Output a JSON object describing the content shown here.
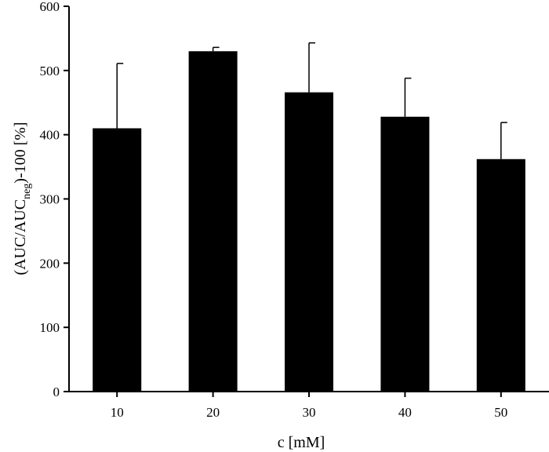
{
  "chart_data": {
    "type": "bar",
    "categories": [
      "10",
      "20",
      "30",
      "40",
      "50"
    ],
    "series": [
      {
        "values": [
          410,
          530,
          466,
          428,
          362
        ],
        "errors": [
          101,
          6,
          77,
          60,
          57
        ]
      }
    ],
    "xlabel": "c [mM]",
    "ylabel": {
      "prefix": "(AUC/AUC",
      "subscript": "neg",
      "suffix": ")-100 [%]"
    },
    "ylim": [
      0,
      600
    ],
    "yticks": [
      "0",
      "100",
      "200",
      "300",
      "400",
      "500",
      "600"
    ],
    "grid": false,
    "bar_color": "#000000"
  }
}
